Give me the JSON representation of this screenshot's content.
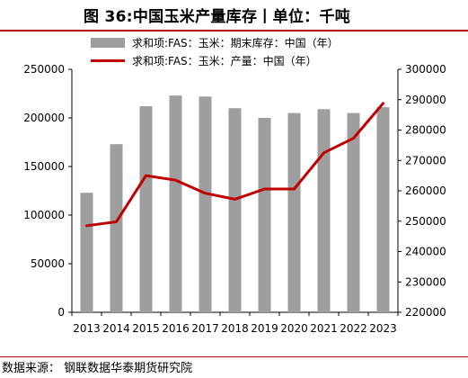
{
  "title": "图 36:中国玉米产量库存丨单位：千吨",
  "source": "数据来源：  钢联数据华泰期货研究院",
  "colors": {
    "bar": "#9e9e9e",
    "line": "#c00000",
    "rule": "#b30000"
  },
  "chart_data": {
    "type": "bar",
    "categories": [
      "2013",
      "2014",
      "2015",
      "2016",
      "2017",
      "2018",
      "2019",
      "2020",
      "2021",
      "2022",
      "2023"
    ],
    "series": [
      {
        "name": "求和项:FAS：玉米：期末库存：中国（年）",
        "type": "bar",
        "axis": "left",
        "values": [
          123000,
          173000,
          212000,
          223000,
          222000,
          210000,
          200000,
          205000,
          209000,
          205000,
          211000
        ]
      },
      {
        "name": "求和项:FAS：玉米：产量：中国（年）",
        "type": "line",
        "axis": "right",
        "values": [
          248500,
          249800,
          265000,
          263500,
          259200,
          257200,
          260600,
          260600,
          272500,
          277300,
          288800
        ]
      }
    ],
    "ylim_left": [
      0,
      250000
    ],
    "ylim_right": [
      220000,
      300000
    ],
    "yticks_left": [
      "0",
      "50000",
      "100000",
      "150000",
      "200000",
      "250000"
    ],
    "yticks_right": [
      "220000",
      "230000",
      "240000",
      "250000",
      "260000",
      "270000",
      "280000",
      "290000",
      "300000"
    ],
    "grid": false,
    "legend_position": "top"
  }
}
